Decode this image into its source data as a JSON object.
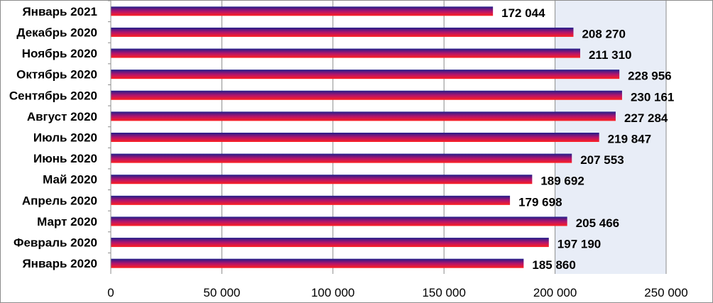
{
  "chart_data": {
    "type": "bar",
    "orientation": "horizontal",
    "title": "",
    "xlabel": "",
    "ylabel": "",
    "categories": [
      "Январь 2021",
      "Декабрь 2020",
      "Ноябрь 2020",
      "Октябрь 2020",
      "Сентябрь 2020",
      "Август 2020",
      "Июль 2020",
      "Июнь 2020",
      "Май 2020",
      "Апрель 2020",
      "Март 2020",
      "Февраль 2020",
      "Январь 2020"
    ],
    "values": [
      172044,
      208270,
      211310,
      228956,
      230161,
      227284,
      219847,
      207553,
      189692,
      179698,
      205466,
      197190,
      185860
    ],
    "value_labels": [
      "172 044",
      "208 270",
      "211 310",
      "228 956",
      "230 161",
      "227 284",
      "219 847",
      "207 553",
      "189 692",
      "179 698",
      "205 466",
      "197 190",
      "185 860"
    ],
    "xlim": [
      0,
      250000
    ],
    "ticks": [
      0,
      50000,
      100000,
      150000,
      200000,
      250000
    ],
    "tick_labels": [
      "0",
      "50 000",
      "100 000",
      "150 000",
      "200 000",
      "250 000"
    ],
    "grid": true,
    "legend": "none",
    "colors": {
      "plot_bg": "#E8EDF7",
      "bar_top": "#1F1F8C",
      "bar_mid": "#B0146E",
      "bar_bottom": "#FF2020",
      "gridline": "#8C8C8C"
    }
  }
}
